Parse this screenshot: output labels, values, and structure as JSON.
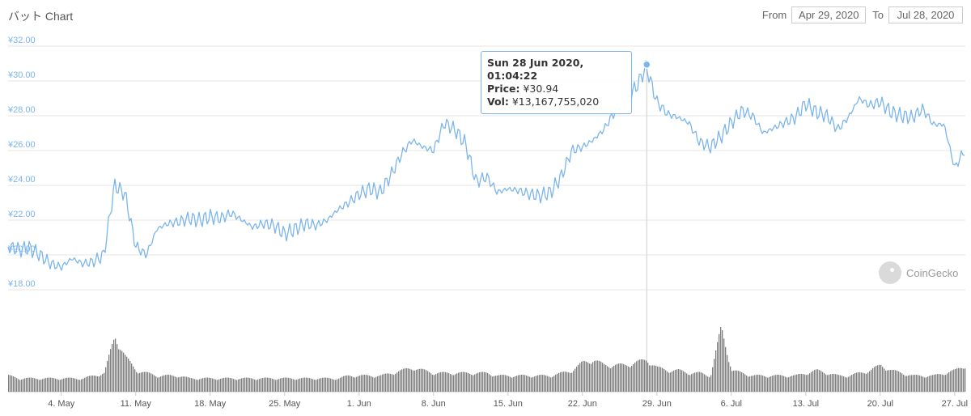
{
  "header": {
    "title": "バット Chart"
  },
  "range": {
    "from_label": "From",
    "from_value": "Apr 29, 2020",
    "to_label": "To",
    "to_value": "Jul 28, 2020"
  },
  "tooltip": {
    "date": "Sun 28 Jun 2020, 01:04:22",
    "price_label": "Price:",
    "price_value": "¥30.94",
    "vol_label": "Vol:",
    "vol_value": "¥13,167,755,020"
  },
  "watermark": {
    "text": "CoinGecko"
  },
  "colors": {
    "line": "#7cb5ec",
    "volume": "#7d7d7d",
    "grid": "#e6e6e6",
    "axis_label": "#7cb5ec",
    "tooltip_border": "#7cb5ec"
  },
  "chart_data": {
    "type": "line",
    "x_label_unit": "date",
    "ylim": [
      18,
      32
    ],
    "y_ticks": [
      "¥18.00",
      "¥20.00",
      "¥22.00",
      "¥24.00",
      "¥26.00",
      "¥28.00",
      "¥30.00",
      "¥32.00"
    ],
    "x_ticks": [
      "4. May",
      "11. May",
      "18. May",
      "25. May",
      "1. Jun",
      "8. Jun",
      "15. Jun",
      "22. Jun",
      "29. Jun",
      "6. Jul",
      "13. Jul",
      "20. Jul",
      "27. Jul"
    ],
    "x": [
      "2020-04-29",
      "2020-04-30",
      "2020-05-01",
      "2020-05-02",
      "2020-05-03",
      "2020-05-04",
      "2020-05-05",
      "2020-05-06",
      "2020-05-07",
      "2020-05-08",
      "2020-05-09",
      "2020-05-10",
      "2020-05-11",
      "2020-05-12",
      "2020-05-13",
      "2020-05-14",
      "2020-05-15",
      "2020-05-16",
      "2020-05-17",
      "2020-05-18",
      "2020-05-19",
      "2020-05-20",
      "2020-05-21",
      "2020-05-22",
      "2020-05-23",
      "2020-05-24",
      "2020-05-25",
      "2020-05-26",
      "2020-05-27",
      "2020-05-28",
      "2020-05-29",
      "2020-05-30",
      "2020-05-31",
      "2020-06-01",
      "2020-06-02",
      "2020-06-03",
      "2020-06-04",
      "2020-06-05",
      "2020-06-06",
      "2020-06-07",
      "2020-06-08",
      "2020-06-09",
      "2020-06-10",
      "2020-06-11",
      "2020-06-12",
      "2020-06-13",
      "2020-06-14",
      "2020-06-15",
      "2020-06-16",
      "2020-06-17",
      "2020-06-18",
      "2020-06-19",
      "2020-06-20",
      "2020-06-21",
      "2020-06-22",
      "2020-06-23",
      "2020-06-24",
      "2020-06-25",
      "2020-06-26",
      "2020-06-27",
      "2020-06-28",
      "2020-06-29",
      "2020-06-30",
      "2020-07-01",
      "2020-07-02",
      "2020-07-03",
      "2020-07-04",
      "2020-07-05",
      "2020-07-06",
      "2020-07-07",
      "2020-07-08",
      "2020-07-09",
      "2020-07-10",
      "2020-07-11",
      "2020-07-12",
      "2020-07-13",
      "2020-07-14",
      "2020-07-15",
      "2020-07-16",
      "2020-07-17",
      "2020-07-18",
      "2020-07-19",
      "2020-07-20",
      "2020-07-21",
      "2020-07-22",
      "2020-07-23",
      "2020-07-24",
      "2020-07-25",
      "2020-07-26",
      "2020-07-27",
      "2020-07-28"
    ],
    "series": [
      {
        "type": "line",
        "values": [
          20.5,
          20.3,
          20.4,
          20.0,
          19.5,
          19.3,
          19.8,
          19.5,
          19.6,
          20.0,
          24.0,
          23.5,
          20.5,
          20.0,
          21.5,
          21.8,
          21.9,
          22.1,
          22.0,
          22.2,
          22.1,
          22.4,
          22.0,
          21.6,
          21.8,
          21.7,
          21.2,
          21.5,
          21.8,
          21.7,
          22.0,
          22.6,
          23.0,
          23.5,
          23.8,
          23.6,
          24.6,
          25.8,
          26.6,
          26.2,
          26.0,
          27.6,
          27.2,
          26.4,
          24.2,
          24.5,
          23.6,
          23.8,
          23.7,
          23.5,
          23.4,
          23.6,
          24.5,
          26.0,
          26.2,
          26.6,
          27.2,
          28.2,
          28.9,
          29.6,
          30.8,
          28.8,
          28.1,
          27.9,
          27.6,
          26.5,
          26.2,
          26.8,
          27.6,
          28.3,
          28.0,
          27.0,
          27.3,
          27.6,
          27.9,
          28.7,
          28.2,
          28.0,
          27.2,
          27.9,
          29.0,
          28.6,
          28.8,
          28.2,
          28.0,
          27.9,
          28.4,
          27.5,
          27.5,
          25.0,
          26.1
        ]
      },
      {
        "type": "volume",
        "values": [
          0.6,
          0.5,
          0.5,
          0.5,
          0.5,
          0.5,
          0.5,
          0.5,
          0.6,
          0.7,
          2.1,
          1.3,
          0.8,
          0.7,
          0.6,
          0.6,
          0.6,
          0.5,
          0.5,
          0.5,
          0.5,
          0.5,
          0.5,
          0.5,
          0.5,
          0.5,
          0.5,
          0.5,
          0.5,
          0.5,
          0.5,
          0.5,
          0.6,
          0.6,
          0.6,
          0.6,
          0.7,
          0.8,
          0.9,
          0.8,
          0.7,
          0.7,
          0.7,
          0.7,
          0.7,
          0.7,
          0.6,
          0.6,
          0.6,
          0.6,
          0.6,
          0.6,
          0.7,
          0.8,
          1.1,
          1.2,
          1.0,
          1.0,
          1.0,
          1.1,
          1.2,
          0.9,
          0.8,
          0.8,
          0.7,
          0.7,
          0.6,
          2.4,
          0.8,
          0.7,
          0.6,
          0.6,
          0.6,
          0.6,
          0.6,
          0.7,
          0.8,
          0.7,
          0.6,
          0.6,
          0.7,
          0.8,
          1.0,
          0.8,
          0.7,
          0.6,
          0.6,
          0.6,
          0.7,
          0.8,
          1.0
        ]
      }
    ]
  }
}
